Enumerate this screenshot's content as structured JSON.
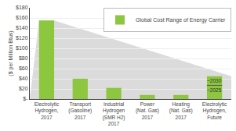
{
  "chart_data": {
    "type": "bar",
    "categories": [
      "Electrolytic\nHydrogen,\n2017",
      "Transport\n(Gasoline)\n2017",
      "Industrial\nHydrogen\n(SMR H2)\n2017",
      "Power\n(Nat. Gas)\n2017",
      "Heating\n(Nat. Gas)\n2017",
      "Electrolytic\nHydrogen,\nFuture"
    ],
    "series": [
      {
        "name": "Global Cost Range of Energy Carrier",
        "color": "#8dc63f",
        "values": [
          155,
          40,
          22,
          8,
          8,
          45
        ]
      }
    ],
    "ylabel": "($ per Million Btus)",
    "ylim": [
      0,
      180
    ],
    "yticks": [
      {
        "value": 0,
        "label": "$-"
      },
      {
        "value": 20,
        "label": "$20"
      },
      {
        "value": 40,
        "label": "$40"
      },
      {
        "value": 60,
        "label": "$60"
      },
      {
        "value": 80,
        "label": "$80"
      },
      {
        "value": 100,
        "label": "$100"
      },
      {
        "value": 120,
        "label": "$120"
      },
      {
        "value": 140,
        "label": "$140"
      },
      {
        "value": 160,
        "label": "$160"
      },
      {
        "value": 180,
        "label": "$180"
      }
    ],
    "annotations": [
      {
        "text": "~2030",
        "x": "Electrolytic\nHydrogen,\nFuture",
        "y": 36
      },
      {
        "text": "~2025",
        "x": "Electrolytic\nHydrogen,\nFuture",
        "y": 18
      }
    ],
    "divider": {
      "x": "Electrolytic\nHydrogen,\nFuture",
      "y": 27
    },
    "grid": true,
    "legend": "upper right"
  }
}
